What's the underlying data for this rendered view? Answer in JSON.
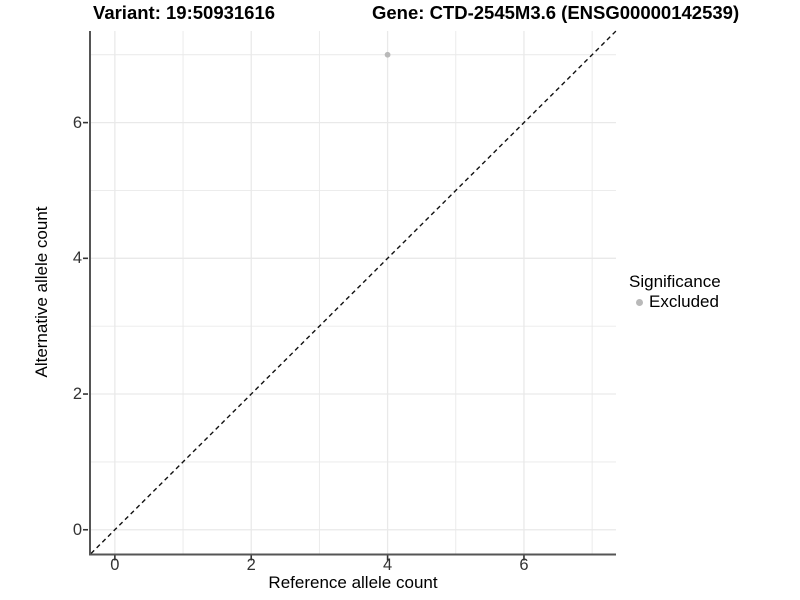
{
  "chart_data": {
    "type": "scatter",
    "title_left": "Variant: 19:50931616",
    "title_right": "Gene: CTD-2545M3.6 (ENSG00000142539)",
    "xlabel": "Reference allele count",
    "ylabel": "Alternative allele count",
    "xlim": [
      -0.35,
      7.35
    ],
    "ylim": [
      -0.35,
      7.35
    ],
    "x_ticks": [
      0,
      2,
      4,
      6
    ],
    "x_tick_labels": [
      "0",
      "2",
      "4",
      "6"
    ],
    "y_ticks": [
      0,
      2,
      4,
      6
    ],
    "y_tick_labels": [
      "0",
      "2",
      "4",
      "6"
    ],
    "grid_positions": [
      0,
      1,
      2,
      3,
      4,
      5,
      6,
      7
    ],
    "grid": true,
    "identity_line": {
      "type": "dashed",
      "slope": 1,
      "intercept": 0,
      "color": "#111111"
    },
    "series": [
      {
        "name": "Excluded",
        "color": "#b9b9b9",
        "points": [
          {
            "x": 4,
            "y": 7
          }
        ]
      }
    ],
    "legend": {
      "position": "right",
      "title": "Significance",
      "items": [
        {
          "label": "Excluded",
          "color": "#b9b9b9"
        }
      ]
    }
  },
  "colors": {
    "background": "#ffffff",
    "gridline": "#e9e9e9",
    "axis_line": "#555555",
    "tick_mark": "#333333",
    "tick_label": "#333333",
    "title_text": "#000000",
    "point": "#b9b9b9"
  }
}
